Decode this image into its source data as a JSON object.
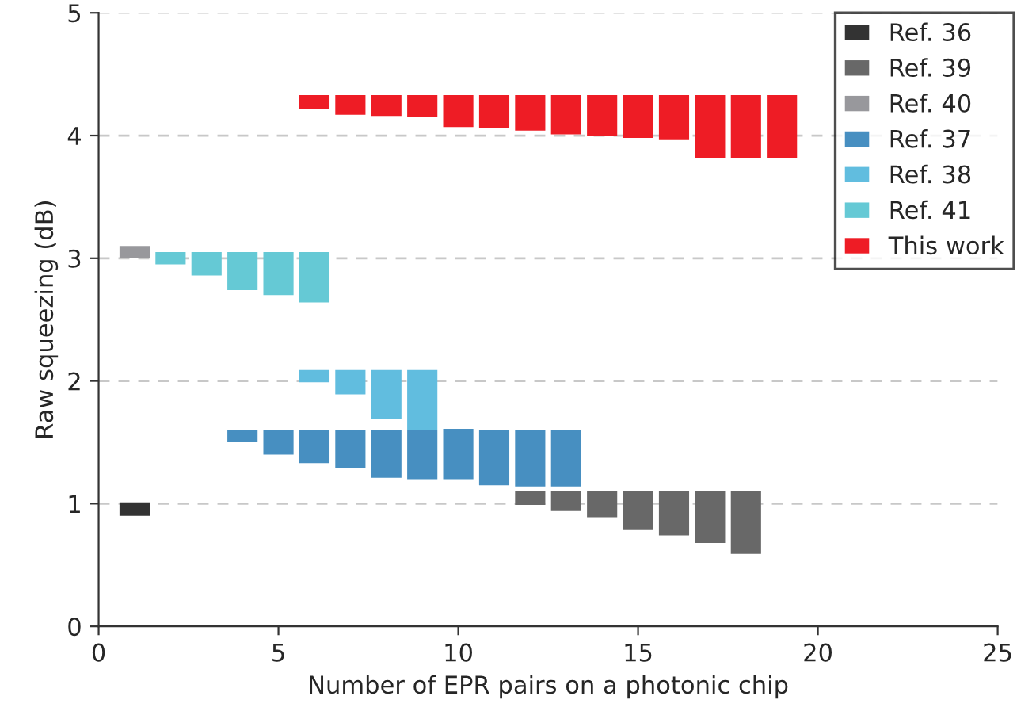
{
  "chart_data": {
    "type": "bar",
    "xlabel": "Number of EPR pairs on a photonic chip",
    "ylabel": "Raw squeezing (dB)",
    "xlim": [
      0,
      25
    ],
    "xticks": [
      0,
      5,
      10,
      15,
      20,
      25
    ],
    "ylim": [
      0,
      5
    ],
    "yticks": [
      0,
      1,
      2,
      3,
      4,
      5
    ],
    "grid": "y",
    "line_style": "dashed",
    "legend": "top right",
    "series": [
      {
        "name": "Ref. 36",
        "color": "#333333",
        "x": [
          1
        ],
        "base": [
          0.9
        ],
        "values": [
          0.11
        ]
      },
      {
        "name": "Ref. 39",
        "color": "#686868",
        "x": [
          12,
          13,
          14,
          15,
          16,
          17,
          18
        ],
        "base": [
          0.99,
          0.94,
          0.89,
          0.79,
          0.74,
          0.68,
          0.59
        ],
        "values": [
          0.11,
          0.16,
          0.21,
          0.31,
          0.36,
          0.42,
          0.51
        ]
      },
      {
        "name": "Ref. 40",
        "color": "#98989c",
        "x": [
          1
        ],
        "base": [
          3.0
        ],
        "values": [
          0.1
        ]
      },
      {
        "name": "Ref. 37",
        "color": "#478fc1",
        "x": [
          4,
          5,
          6,
          7,
          8,
          9,
          10,
          11,
          12,
          13
        ],
        "base": [
          1.5,
          1.4,
          1.33,
          1.29,
          1.21,
          1.2,
          1.2,
          1.15,
          1.14,
          1.14
        ],
        "values": [
          0.1,
          0.2,
          0.27,
          0.31,
          0.39,
          0.4,
          0.41,
          0.45,
          0.46,
          0.46
        ]
      },
      {
        "name": "Ref. 38",
        "color": "#61bddf",
        "x": [
          6,
          7,
          8,
          9
        ],
        "base": [
          1.99,
          1.89,
          1.69,
          1.6
        ],
        "values": [
          0.1,
          0.2,
          0.4,
          0.49
        ]
      },
      {
        "name": "Ref. 41",
        "color": "#65c9d5",
        "x": [
          2,
          3,
          4,
          5,
          6
        ],
        "base": [
          2.95,
          2.86,
          2.74,
          2.7,
          2.64
        ],
        "values": [
          0.1,
          0.19,
          0.31,
          0.35,
          0.41
        ]
      },
      {
        "name": "This work",
        "color": "#ee1c25",
        "x": [
          6,
          7,
          8,
          9,
          10,
          11,
          12,
          13,
          14,
          15,
          16,
          17,
          18,
          19
        ],
        "base": [
          4.22,
          4.17,
          4.16,
          4.15,
          4.07,
          4.06,
          4.04,
          4.01,
          4.0,
          3.98,
          3.97,
          3.82,
          3.82,
          3.82
        ],
        "values": [
          0.11,
          0.16,
          0.17,
          0.18,
          0.26,
          0.27,
          0.29,
          0.32,
          0.33,
          0.35,
          0.36,
          0.51,
          0.51,
          0.51
        ]
      }
    ]
  }
}
